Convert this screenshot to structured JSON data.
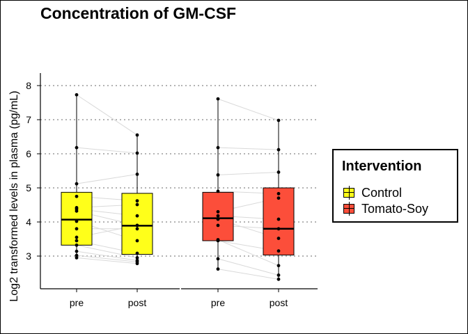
{
  "chart_data": {
    "type": "box",
    "title": "Concentration of GM-CSF",
    "xlabel": "",
    "ylabel": "Log2 transformed levels in plasma (pg/mL)",
    "ylim": [
      2.0,
      8.0
    ],
    "yticks": [
      3,
      4,
      5,
      6,
      7,
      8
    ],
    "grid": "horizontal dotted",
    "legend": {
      "title": "Intervention",
      "position": "right",
      "entries": [
        {
          "label": "Control",
          "color": "#ffff1a"
        },
        {
          "label": "Tomato-Soy",
          "color": "#fc4e3a"
        }
      ]
    },
    "panels": [
      {
        "group": "Control",
        "color": "#ffff1a",
        "categories": [
          "pre",
          "post"
        ],
        "boxes": [
          {
            "category": "pre",
            "min": 2.93,
            "q1": 3.32,
            "median": 4.07,
            "q3": 4.87,
            "max": 7.73
          },
          {
            "category": "post",
            "min": 2.78,
            "q1": 3.05,
            "median": 3.89,
            "q3": 4.84,
            "max": 6.55
          }
        ],
        "pairs": [
          [
            7.73,
            6.55
          ],
          [
            6.18,
            6.02
          ],
          [
            5.12,
            5.4
          ],
          [
            4.75,
            4.62
          ],
          [
            4.42,
            4.51
          ],
          [
            4.38,
            4.18
          ],
          [
            4.32,
            3.9
          ],
          [
            4.02,
            3.45
          ],
          [
            3.8,
            3.8
          ],
          [
            3.55,
            3.9
          ],
          [
            3.45,
            3.08
          ],
          [
            3.32,
            2.95
          ],
          [
            3.14,
            2.87
          ],
          [
            3.02,
            2.83
          ],
          [
            2.95,
            2.78
          ]
        ]
      },
      {
        "group": "Tomato-Soy",
        "color": "#fc4e3a",
        "categories": [
          "pre",
          "post"
        ],
        "boxes": [
          {
            "category": "pre",
            "min": 2.62,
            "q1": 3.45,
            "median": 4.11,
            "q3": 4.87,
            "max": 7.61
          },
          {
            "category": "post",
            "min": 2.32,
            "q1": 3.03,
            "median": 3.8,
            "q3": 5.0,
            "max": 6.98
          }
        ],
        "pairs": [
          [
            7.61,
            6.98
          ],
          [
            6.18,
            6.12
          ],
          [
            5.38,
            5.46
          ],
          [
            4.9,
            4.83
          ],
          [
            4.3,
            4.7
          ],
          [
            4.18,
            4.08
          ],
          [
            4.08,
            3.52
          ],
          [
            3.9,
            3.8
          ],
          [
            3.45,
            3.15
          ],
          [
            3.48,
            2.72
          ],
          [
            2.92,
            2.44
          ],
          [
            2.62,
            2.32
          ]
        ]
      }
    ]
  }
}
